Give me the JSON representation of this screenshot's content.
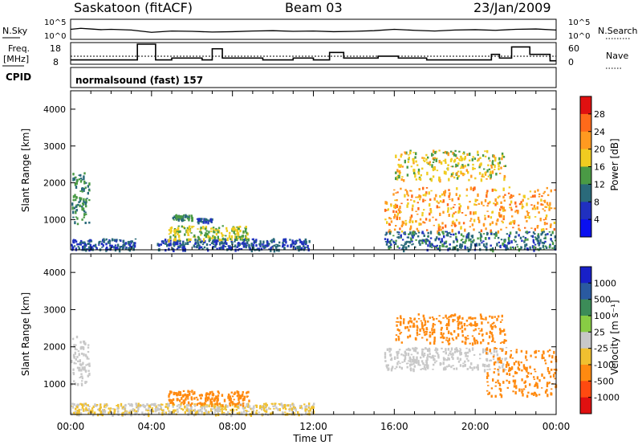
{
  "header": {
    "station": "Saskatoon (fitACF)",
    "beam": "Beam 03",
    "date": "23/Jan/2009"
  },
  "aux_panels": {
    "nsky_label": "N.Sky",
    "nsearch_label": "N.Search",
    "freq_label_1": "Freq.",
    "freq_label_2": "[MHz]",
    "nave_label": "Nave",
    "cpid_label": "CPID",
    "cpid_text": "normalsound (fast) 157",
    "nsky_ticks": [
      "10^5",
      "10^0"
    ],
    "nsearch_ticks": [
      "10^5",
      "10^0"
    ],
    "freq_ticks": [
      "18",
      "8"
    ],
    "nave_ticks": [
      "60",
      "0"
    ]
  },
  "x_axis": {
    "title": "Time UT",
    "ticks": [
      "00:00",
      "04:00",
      "08:00",
      "12:00",
      "16:00",
      "20:00",
      "00:00"
    ]
  },
  "colorbars": {
    "power": {
      "title": "Power [dB]",
      "labels": [
        "28",
        "24",
        "20",
        "16",
        "12",
        "8",
        "4"
      ],
      "colors": [
        "#e01010",
        "#ff6a1a",
        "#ff9a20",
        "#f0cc20",
        "#4a9a45",
        "#2a6a7a",
        "#2030c0",
        "#0a10f0"
      ]
    },
    "velocity": {
      "title": "Velocity [m s⁻¹]",
      "labels": [
        "1000",
        "500",
        "100",
        "25",
        "-25",
        "-100",
        "-500",
        "-1000"
      ],
      "colors": [
        "#1820c8",
        "#2a5aa0",
        "#3c8c58",
        "#88cc44",
        "#c8c8c8",
        "#f0c030",
        "#ff8a10",
        "#ff4a10",
        "#e01010"
      ]
    }
  },
  "chart_data": [
    {
      "type": "line",
      "name": "N.Sky / N.Search",
      "xlim": [
        0,
        24
      ],
      "scale": "log",
      "ticks": [
        "10^5",
        "10^0"
      ],
      "x": [
        0,
        0.5,
        1,
        1.5,
        2,
        3,
        4,
        5,
        6,
        7,
        8,
        9,
        10,
        11,
        12,
        13,
        14,
        15,
        16,
        17,
        18,
        19,
        20,
        21,
        22,
        23,
        24
      ],
      "y": [
        2.5,
        2.8,
        2.6,
        2.4,
        2.5,
        2.3,
        1.6,
        2.0,
        1.9,
        1.7,
        1.8,
        2.0,
        2.1,
        1.9,
        2.0,
        1.8,
        1.9,
        2.1,
        2.5,
        2.2,
        2.0,
        2.3,
        2.4,
        2.2,
        2.5,
        2.6,
        2.3
      ]
    },
    {
      "type": "line",
      "name": "Freq. [MHz]",
      "xlim": [
        0,
        24
      ],
      "ylim": [
        8,
        18
      ],
      "x": [
        0,
        3.3,
        3.3,
        4.2,
        4.2,
        5.0,
        5.0,
        6.5,
        6.5,
        7.0,
        7.0,
        7.5,
        7.5,
        9.5,
        9.5,
        11.0,
        11.0,
        12.0,
        12.0,
        12.8,
        12.8,
        13.5,
        13.5,
        15.2,
        15.2,
        16.2,
        16.2,
        17.6,
        17.6,
        19.5,
        19.5,
        20.8,
        20.8,
        21.2,
        21.2,
        21.8,
        21.8,
        22.7,
        22.7,
        23.7,
        23.7,
        24
      ],
      "y": [
        9.5,
        9.5,
        18,
        18,
        9.5,
        9.5,
        10.5,
        10.5,
        9.5,
        9.5,
        15.5,
        15.5,
        10.5,
        10.5,
        9.5,
        9.5,
        10.5,
        10.5,
        9.5,
        9.5,
        13.5,
        13.5,
        10.5,
        10.5,
        11.5,
        11.5,
        10.5,
        10.5,
        9.5,
        9.5,
        9.5,
        9.5,
        12.5,
        12.5,
        10.5,
        10.5,
        16.5,
        16.5,
        12.5,
        12.5,
        9.0,
        9.0
      ]
    },
    {
      "type": "heatmap",
      "name": "Power",
      "quantity": "Power [dB]",
      "xlabel": "Time UT",
      "ylabel": "Slant Range [km]",
      "xlim": [
        0,
        24
      ],
      "ylim": [
        180,
        4500
      ],
      "yticks": [
        1000,
        2000,
        3000,
        4000
      ],
      "echo_regions": [
        {
          "t0": 0.0,
          "t1": 0.9,
          "r0": 900,
          "r1": 2300,
          "level": 10
        },
        {
          "t0": 0.0,
          "t1": 3.2,
          "r0": 200,
          "r1": 500,
          "level": 6
        },
        {
          "t0": 4.2,
          "t1": 11.8,
          "r0": 200,
          "r1": 500,
          "level": 6
        },
        {
          "t0": 4.8,
          "t1": 8.8,
          "r0": 450,
          "r1": 850,
          "level": 14
        },
        {
          "t0": 5.0,
          "t1": 6.0,
          "r0": 1000,
          "r1": 1150,
          "level": 10
        },
        {
          "t0": 6.2,
          "t1": 7.0,
          "r0": 950,
          "r1": 1050,
          "level": 6
        },
        {
          "t0": 15.5,
          "t1": 23.9,
          "r0": 700,
          "r1": 1900,
          "level": 20
        },
        {
          "t0": 16.0,
          "t1": 21.5,
          "r0": 2100,
          "r1": 2900,
          "level": 16
        },
        {
          "t0": 15.5,
          "t1": 24.0,
          "r0": 200,
          "r1": 700,
          "level": 8
        }
      ],
      "colorbar": {
        "labels": [
          "28",
          "24",
          "20",
          "16",
          "12",
          "8",
          "4"
        ]
      }
    },
    {
      "type": "heatmap",
      "name": "Velocity",
      "quantity": "Velocity [m s-1]",
      "xlabel": "Time UT",
      "ylabel": "Slant Range [km]",
      "xlim": [
        0,
        24
      ],
      "ylim": [
        180,
        4500
      ],
      "yticks": [
        1000,
        2000,
        3000,
        4000
      ],
      "echo_regions": [
        {
          "t0": 0.0,
          "t1": 0.9,
          "r0": 1000,
          "r1": 2300,
          "level": 0
        },
        {
          "t0": 0.0,
          "t1": 12.0,
          "r0": 200,
          "r1": 500,
          "level": -25
        },
        {
          "t0": 4.8,
          "t1": 8.8,
          "r0": 450,
          "r1": 850,
          "level": -150
        },
        {
          "t0": 15.5,
          "t1": 21.5,
          "r0": 1400,
          "r1": 2000,
          "level": 0
        },
        {
          "t0": 16.0,
          "t1": 21.5,
          "r0": 2100,
          "r1": 2900,
          "level": -300
        },
        {
          "t0": 20.5,
          "t1": 24.0,
          "r0": 700,
          "r1": 2000,
          "level": -300
        }
      ],
      "colorbar": {
        "labels": [
          "1000",
          "500",
          "100",
          "25",
          "-25",
          "-100",
          "-500",
          "-1000"
        ]
      }
    }
  ]
}
